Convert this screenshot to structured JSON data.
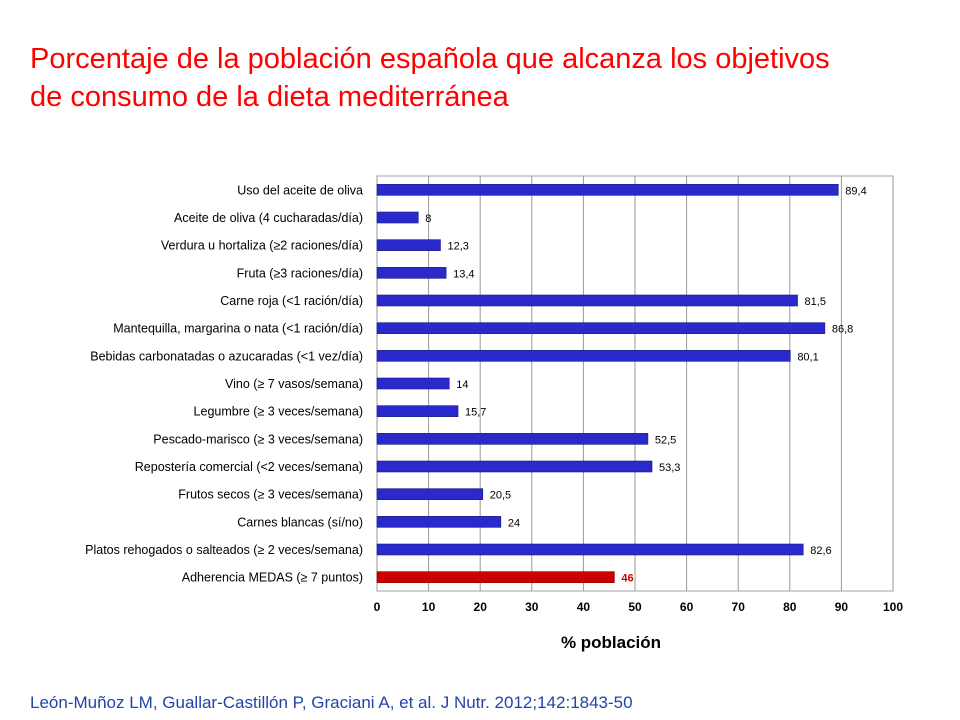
{
  "slide": {
    "title_line1": "Porcentaje de la población española que alcanza los objetivos",
    "title_line2": "de consumo de la dieta mediterránea",
    "citation": "León-Muñoz LM, Guallar-Castillón P, Graciani A, et al. J Nutr. 2012;142:1843-50"
  },
  "colors": {
    "title": "#ff0000",
    "citation": "#2244aa",
    "bar": "#2a2acc",
    "bar_highlight": "#cc0000",
    "highlight_label": "#cc0000"
  },
  "chart_data": {
    "type": "bar",
    "orientation": "horizontal",
    "categories": [
      "Uso del aceite de oliva",
      "Aceite de oliva (4 cucharadas/día)",
      "Verdura u hortaliza (≥2 raciones/día)",
      "Fruta (≥3 raciones/día)",
      "Carne roja (<1 ración/día)",
      "Mantequilla, margarina o nata (<1 ración/día)",
      "Bebidas carbonatadas o azucaradas (<1 vez/día)",
      "Vino (≥ 7 vasos/semana)",
      "Legumbre (≥ 3 veces/semana)",
      "Pescado-marisco (≥ 3 veces/semana)",
      "Repostería comercial (<2 veces/semana)",
      "Frutos secos (≥ 3 veces/semana)",
      "Carnes blancas (sí/no)",
      "Platos rehogados o salteados (≥ 2 veces/semana)",
      "Adherencia MEDAS (≥ 7 puntos)"
    ],
    "values": [
      89.4,
      8,
      12.3,
      13.4,
      81.5,
      86.8,
      80.1,
      14,
      15.7,
      52.5,
      53.3,
      20.5,
      24,
      82.6,
      46
    ],
    "value_labels": [
      "89,4",
      "8",
      "12,3",
      "13,4",
      "81,5",
      "86,8",
      "80,1",
      "14",
      "15,7",
      "52,5",
      "53,3",
      "20,5",
      "24",
      "82,6",
      "46"
    ],
    "highlight_index": 14,
    "xlabel": "% población",
    "xlim": [
      0,
      100
    ],
    "xticks": [
      0,
      10,
      20,
      30,
      40,
      50,
      60,
      70,
      80,
      90,
      100
    ],
    "grid": "vertical"
  }
}
